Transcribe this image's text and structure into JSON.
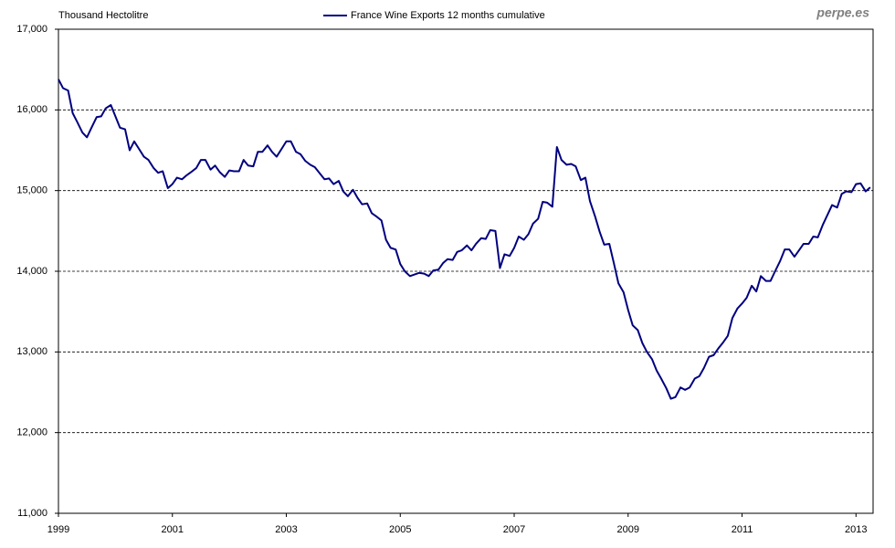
{
  "chart_data": {
    "type": "line",
    "y_label": "Thousand Hectolitre",
    "watermark": "perpe.es",
    "xlim": [
      1999,
      2013.3
    ],
    "xticks": [
      1999,
      2001,
      2003,
      2005,
      2007,
      2009,
      2011,
      2013
    ],
    "ylim": [
      11000,
      17000
    ],
    "yticks": [
      {
        "value": 11000,
        "label": "11,000"
      },
      {
        "value": 12000,
        "label": "12,000"
      },
      {
        "value": 13000,
        "label": "13,000"
      },
      {
        "value": 14000,
        "label": "14,000"
      },
      {
        "value": 15000,
        "label": "15,000"
      },
      {
        "value": 16000,
        "label": "16,000"
      },
      {
        "value": 17000,
        "label": "17,000"
      }
    ],
    "grid": true,
    "x": [
      1999,
      1999.08,
      1999.17,
      1999.25,
      1999.33,
      1999.42,
      1999.5,
      1999.58,
      1999.67,
      1999.75,
      1999.83,
      1999.92,
      2000,
      2000.08,
      2000.17,
      2000.25,
      2000.33,
      2000.42,
      2000.5,
      2000.58,
      2000.67,
      2000.75,
      2000.83,
      2000.92,
      2001,
      2001.08,
      2001.17,
      2001.25,
      2001.33,
      2001.42,
      2001.5,
      2001.58,
      2001.67,
      2001.75,
      2001.83,
      2001.92,
      2002,
      2002.08,
      2002.17,
      2002.25,
      2002.33,
      2002.42,
      2002.5,
      2002.58,
      2002.67,
      2002.75,
      2002.83,
      2002.92,
      2003,
      2003.08,
      2003.17,
      2003.25,
      2003.33,
      2003.42,
      2003.5,
      2003.58,
      2003.67,
      2003.75,
      2003.83,
      2003.92,
      2004,
      2004.08,
      2004.17,
      2004.25,
      2004.33,
      2004.42,
      2004.5,
      2004.58,
      2004.67,
      2004.75,
      2004.83,
      2004.92,
      2005,
      2005.08,
      2005.17,
      2005.25,
      2005.33,
      2005.42,
      2005.5,
      2005.58,
      2005.67,
      2005.75,
      2005.83,
      2005.92,
      2006,
      2006.08,
      2006.17,
      2006.25,
      2006.33,
      2006.42,
      2006.5,
      2006.58,
      2006.67,
      2006.75,
      2006.83,
      2006.92,
      2007,
      2007.08,
      2007.17,
      2007.25,
      2007.33,
      2007.42,
      2007.5,
      2007.58,
      2007.67,
      2007.75,
      2007.83,
      2007.92,
      2008,
      2008.08,
      2008.17,
      2008.25,
      2008.33,
      2008.42,
      2008.5,
      2008.58,
      2008.67,
      2008.75,
      2008.83,
      2008.92,
      2009,
      2009.08,
      2009.17,
      2009.25,
      2009.33,
      2009.42,
      2009.5,
      2009.58,
      2009.67,
      2009.75,
      2009.83,
      2009.92,
      2010,
      2010.08,
      2010.17,
      2010.25,
      2010.33,
      2010.42,
      2010.5,
      2010.58,
      2010.67,
      2010.75,
      2010.83,
      2010.92,
      2011,
      2011.08,
      2011.17,
      2011.25,
      2011.33,
      2011.42,
      2011.5,
      2011.58,
      2011.67,
      2011.75,
      2011.83,
      2011.92,
      2012,
      2012.08,
      2012.17,
      2012.25,
      2012.33,
      2012.42,
      2012.5,
      2012.58,
      2012.67,
      2012.75,
      2012.83,
      2012.92,
      2013,
      2013.08,
      2013.17,
      2013.25
    ],
    "series": [
      {
        "name": "France Wine Exports 12 months cumulative",
        "color": "#000080",
        "values": [
          16380,
          16270,
          16240,
          15960,
          15850,
          15720,
          15660,
          15780,
          15910,
          15920,
          16020,
          16060,
          15920,
          15780,
          15760,
          15500,
          15610,
          15510,
          15420,
          15380,
          15280,
          15220,
          15240,
          15030,
          15080,
          15160,
          15140,
          15190,
          15230,
          15280,
          15380,
          15380,
          15260,
          15310,
          15230,
          15170,
          15250,
          15240,
          15240,
          15380,
          15310,
          15300,
          15480,
          15480,
          15560,
          15480,
          15420,
          15520,
          15610,
          15610,
          15480,
          15450,
          15370,
          15320,
          15290,
          15220,
          15140,
          15150,
          15080,
          15120,
          14990,
          14930,
          15010,
          14910,
          14830,
          14840,
          14720,
          14680,
          14630,
          14390,
          14290,
          14270,
          14090,
          14000,
          13940,
          13960,
          13980,
          13970,
          13940,
          14010,
          14020,
          14100,
          14150,
          14140,
          14240,
          14260,
          14320,
          14260,
          14340,
          14410,
          14400,
          14510,
          14500,
          14040,
          14210,
          14190,
          14290,
          14430,
          14390,
          14460,
          14590,
          14650,
          14860,
          14850,
          14800,
          15540,
          15380,
          15320,
          15330,
          15300,
          15130,
          15160,
          14870,
          14680,
          14490,
          14330,
          14340,
          14100,
          13850,
          13740,
          13520,
          13330,
          13270,
          13110,
          13000,
          12910,
          12770,
          12670,
          12550,
          12420,
          12440,
          12560,
          12530,
          12560,
          12670,
          12700,
          12800,
          12940,
          12960,
          13040,
          13120,
          13200,
          13420,
          13540,
          13600,
          13670,
          13820,
          13750,
          13940,
          13880,
          13880,
          14000,
          14130,
          14270,
          14270,
          14180,
          14260,
          14340,
          14340,
          14430,
          14420,
          14580,
          14700,
          14820,
          14790,
          14960,
          14990,
          14980,
          15080,
          15090,
          14990,
          15040
        ]
      }
    ]
  }
}
